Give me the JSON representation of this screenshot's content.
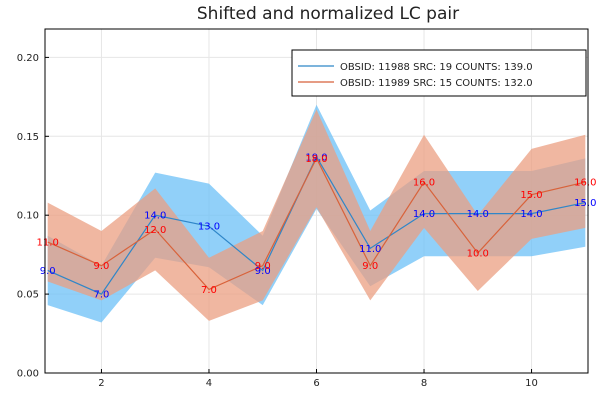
{
  "chart_data": {
    "type": "line",
    "title": "Shifted and normalized LC pair",
    "xlabel": "",
    "ylabel": "",
    "xlim": [
      0.95,
      11.05
    ],
    "ylim": [
      0.0,
      0.218
    ],
    "xticks": [
      2,
      4,
      6,
      8,
      10
    ],
    "yticks": [
      0.0,
      0.05,
      0.1,
      0.15,
      0.2
    ],
    "ytick_labels": [
      "0.00",
      "0.05",
      "0.10",
      "0.15",
      "0.20"
    ],
    "grid": true,
    "legend_position": "top-right",
    "series": [
      {
        "name": "OBSID: 11988 SRC: 19 COUNTS: 139.0",
        "color": "#2f86c8",
        "band_color": "#6cc0f7",
        "x": [
          1,
          2,
          3,
          4,
          5,
          6,
          7,
          8,
          9,
          10,
          11
        ],
        "y": [
          0.065,
          0.05,
          0.1,
          0.093,
          0.065,
          0.137,
          0.079,
          0.101,
          0.101,
          0.101,
          0.108
        ],
        "lower": [
          0.043,
          0.032,
          0.073,
          0.067,
          0.043,
          0.104,
          0.055,
          0.074,
          0.074,
          0.074,
          0.08
        ],
        "upper": [
          0.087,
          0.068,
          0.127,
          0.12,
          0.087,
          0.17,
          0.103,
          0.128,
          0.128,
          0.128,
          0.136
        ],
        "labels": [
          "9.0",
          "7.0",
          "14.0",
          "13.0",
          "9.0",
          "19.0",
          "11.0",
          "14.0",
          "14.0",
          "14.0",
          "15.0"
        ],
        "label_color": "#0000ff"
      },
      {
        "name": "OBSID: 11989 SRC: 15 COUNTS: 132.0",
        "color": "#d8623a",
        "band_color": "#eb9f82",
        "x": [
          1,
          2,
          3,
          4,
          5,
          6,
          7,
          8,
          9,
          10,
          11
        ],
        "y": [
          0.083,
          0.068,
          0.091,
          0.053,
          0.068,
          0.136,
          0.068,
          0.121,
          0.076,
          0.113,
          0.121
        ],
        "lower": [
          0.058,
          0.046,
          0.065,
          0.033,
          0.046,
          0.105,
          0.046,
          0.092,
          0.052,
          0.085,
          0.092
        ],
        "upper": [
          0.108,
          0.09,
          0.117,
          0.073,
          0.09,
          0.167,
          0.09,
          0.151,
          0.1,
          0.142,
          0.151
        ],
        "labels": [
          "11.0",
          "9.0",
          "12.0",
          "7.0",
          "9.0",
          "18.0",
          "9.0",
          "16.0",
          "10.0",
          "15.0",
          "16.0"
        ],
        "label_color": "#ff0000"
      }
    ]
  }
}
